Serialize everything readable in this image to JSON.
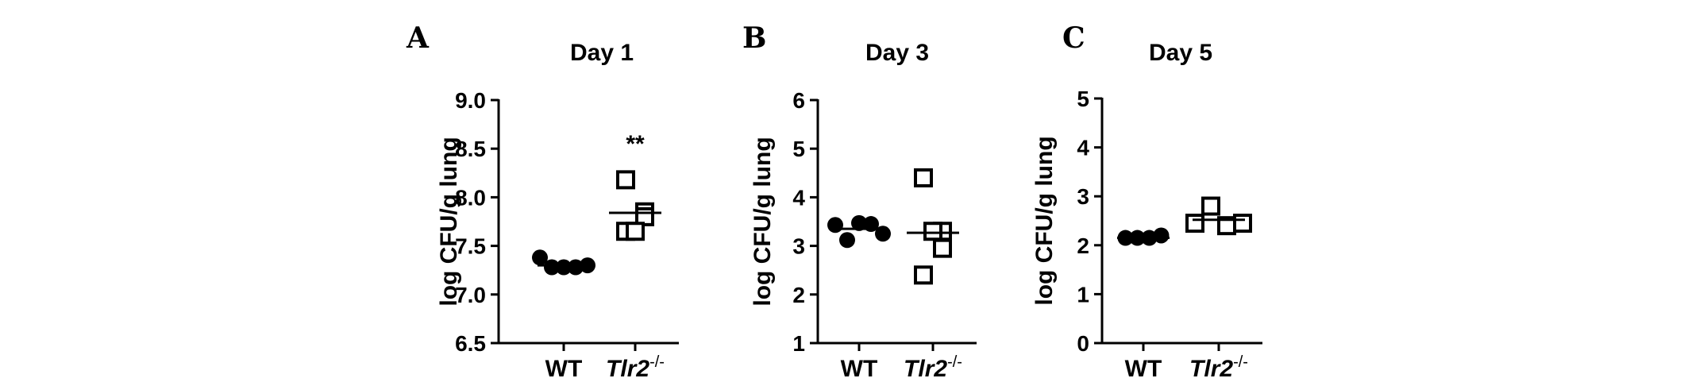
{
  "chart_data": [
    {
      "type": "scatter",
      "panel": "A",
      "title": "Day 1",
      "ylabel": "log CFU/g lung",
      "ylim": [
        6.5,
        9.0
      ],
      "yticks": [
        "6.5",
        "7.0",
        "7.5",
        "8.0",
        "8.5",
        "9.0"
      ],
      "categories": [
        {
          "main": "WT",
          "sup": ""
        },
        {
          "main": "Tlr2",
          "sup": "-/-"
        }
      ],
      "series": [
        {
          "marker": "filled-circle",
          "points": [
            7.38,
            7.28,
            7.28,
            7.28,
            7.3
          ],
          "mean": 7.3
        },
        {
          "marker": "open-square",
          "points": [
            8.18,
            7.85,
            7.65,
            7.8,
            7.65
          ],
          "mean": 7.84
        }
      ],
      "annotations": [
        {
          "text": "**",
          "category": 1,
          "y": 8.55
        }
      ]
    },
    {
      "type": "scatter",
      "panel": "B",
      "title": "Day 3",
      "ylabel": "log CFU/g lung",
      "ylim": [
        1,
        6
      ],
      "yticks": [
        "1",
        "2",
        "3",
        "4",
        "5",
        "6"
      ],
      "categories": [
        {
          "main": "WT",
          "sup": ""
        },
        {
          "main": "Tlr2",
          "sup": "-/-"
        }
      ],
      "series": [
        {
          "marker": "filled-circle",
          "points": [
            3.43,
            3.12,
            3.47,
            3.45,
            3.25
          ],
          "mean": 3.35
        },
        {
          "marker": "open-square",
          "points": [
            4.4,
            3.3,
            2.4,
            2.95,
            3.3
          ],
          "mean": 3.27
        }
      ],
      "annotations": []
    },
    {
      "type": "scatter",
      "panel": "C",
      "title": "Day 5",
      "ylabel": "log CFU/g lung",
      "ylim": [
        0,
        5
      ],
      "yticks": [
        "0",
        "1",
        "2",
        "3",
        "4",
        "5"
      ],
      "categories": [
        {
          "main": "WT",
          "sup": ""
        },
        {
          "main": "Tlr2",
          "sup": "-/-"
        }
      ],
      "series": [
        {
          "marker": "filled-circle",
          "points": [
            2.15,
            2.15,
            2.15,
            2.2
          ],
          "mean": 2.15
        },
        {
          "marker": "open-square",
          "points": [
            2.45,
            2.8,
            2.4,
            2.45
          ],
          "mean": 2.52
        }
      ],
      "annotations": []
    }
  ]
}
